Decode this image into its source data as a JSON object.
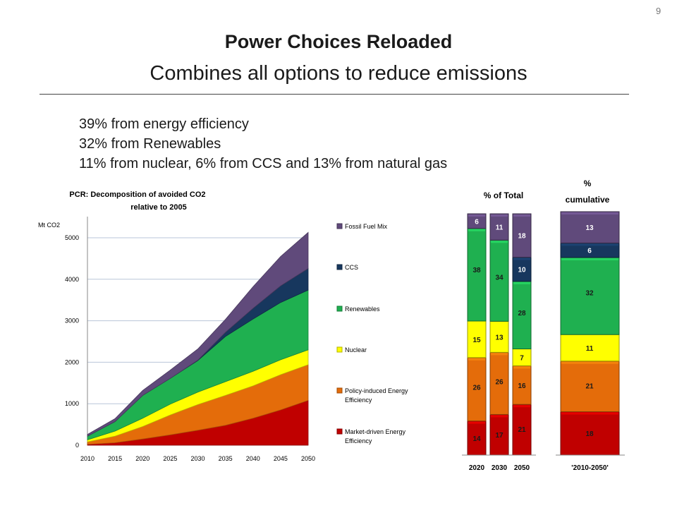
{
  "slide": {
    "page_number": "9",
    "title": "Power Choices Reloaded",
    "subtitle": "Combines all options to reduce emissions",
    "bullets": [
      "39% from energy efficiency",
      "32% from Renewables",
      "11% from nuclear, 6% from CCS and 13% from natural gas"
    ]
  },
  "colors": {
    "market": "#c00000",
    "policy": "#e46c0a",
    "nuclear": "#ffff00",
    "renewables": "#1fb050",
    "ccs": "#17375e",
    "fossil": "#604a7b"
  },
  "chart_data": [
    {
      "type": "area",
      "title": "PCR: Decomposition of avoided CO2 relative to 2005",
      "ylabel": "Mt CO2",
      "xlabel": "",
      "x": [
        2010,
        2015,
        2020,
        2025,
        2030,
        2035,
        2040,
        2045,
        2050
      ],
      "ylim": [
        0,
        5000
      ],
      "yticks": [
        0,
        1000,
        2000,
        3000,
        4000,
        5000
      ],
      "xtick_labels": [
        "2010",
        "2015",
        "2020",
        "2025",
        "2030",
        "2035",
        "2040",
        "2045",
        "2050"
      ],
      "ytick_labels": [
        "0",
        "1000",
        "2000",
        "3000",
        "4000",
        "5000"
      ],
      "stacked": true,
      "grid": "horizontal",
      "legend_position": "right",
      "series": [
        {
          "name": "Market-driven Energy Efficiency",
          "color_key": "market",
          "values": [
            20,
            60,
            150,
            250,
            360,
            480,
            650,
            850,
            1080
          ]
        },
        {
          "name": "Policy-induced Energy Efficiency",
          "color_key": "policy",
          "values": [
            60,
            160,
            300,
            480,
            620,
            720,
            780,
            850,
            860
          ]
        },
        {
          "name": "Nuclear",
          "color_key": "nuclear",
          "values": [
            50,
            120,
            200,
            260,
            300,
            330,
            350,
            360,
            360
          ]
        },
        {
          "name": "Renewables",
          "color_key": "renewables",
          "values": [
            90,
            230,
            550,
            620,
            760,
            1090,
            1260,
            1380,
            1440
          ]
        },
        {
          "name": "CCS",
          "color_key": "ccs",
          "values": [
            0,
            0,
            0,
            0,
            10,
            100,
            260,
            400,
            520
          ]
        },
        {
          "name": "Fossil Fuel Mix",
          "color_key": "fossil",
          "values": [
            40,
            70,
            120,
            200,
            270,
            310,
            520,
            710,
            870
          ]
        }
      ]
    },
    {
      "type": "bar",
      "stacked": true,
      "title": "% of Total",
      "categories": [
        "2020",
        "2030",
        "2050"
      ],
      "series": [
        {
          "name": "Market-driven Energy Efficiency",
          "color_key": "market",
          "values": [
            14,
            17,
            21
          ]
        },
        {
          "name": "Policy-induced Energy Efficiency",
          "color_key": "policy",
          "values": [
            26,
            26,
            16
          ]
        },
        {
          "name": "Nuclear",
          "color_key": "nuclear",
          "values": [
            15,
            13,
            7
          ]
        },
        {
          "name": "Renewables",
          "color_key": "renewables",
          "values": [
            38,
            34,
            28
          ]
        },
        {
          "name": "CCS",
          "color_key": "ccs",
          "values": [
            0,
            0,
            10
          ]
        },
        {
          "name": "Fossil Fuel Mix",
          "color_key": "fossil",
          "values": [
            6,
            11,
            18
          ]
        }
      ],
      "ylim": [
        0,
        100
      ]
    },
    {
      "type": "bar",
      "stacked": true,
      "title": "% cumulative",
      "categories": [
        "'2010-2050'"
      ],
      "series": [
        {
          "name": "Market-driven Energy Efficiency",
          "color_key": "market",
          "values": [
            18
          ]
        },
        {
          "name": "Policy-induced Energy Efficiency",
          "color_key": "policy",
          "values": [
            21
          ]
        },
        {
          "name": "Nuclear",
          "color_key": "nuclear",
          "values": [
            11
          ]
        },
        {
          "name": "Renewables",
          "color_key": "renewables",
          "values": [
            32
          ]
        },
        {
          "name": "CCS",
          "color_key": "ccs",
          "values": [
            6
          ]
        },
        {
          "name": "Fossil Fuel Mix",
          "color_key": "fossil",
          "values": [
            13
          ]
        }
      ],
      "ylim": [
        0,
        100
      ]
    }
  ]
}
